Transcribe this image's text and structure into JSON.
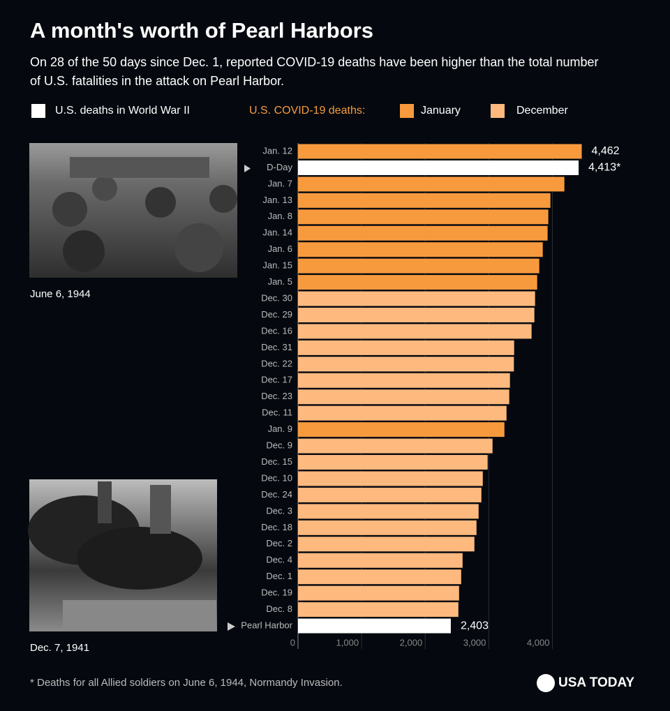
{
  "chart_data": {
    "type": "barh",
    "title": "A month's worth of Pearl Harbors",
    "subtitle": "On 28 of the 50 days since Dec. 1, reported COVID-19 deaths have been higher than the total number of U.S. fatalities in the attack on Pearl Harbor.",
    "legend_title": "U.S. COVID-19 deaths:",
    "categories": [
      "Jan. 12",
      "D-Day",
      "Jan. 7",
      "Jan. 13",
      "Jan. 8",
      "Jan. 14",
      "Jan. 6",
      "Jan. 15",
      "Jan. 5",
      "Dec. 30",
      "Dec. 29",
      "Dec. 16",
      "Dec. 31",
      "Dec. 22",
      "Dec. 17",
      "Dec. 23",
      "Dec. 11",
      "Jan. 9",
      "Dec. 9",
      "Dec. 15",
      "Dec. 10",
      "Dec. 24",
      "Dec. 3",
      "Dec. 18",
      "Dec. 2",
      "Dec. 4",
      "Dec. 1",
      "Dec. 19",
      "Dec. 8",
      "Pearl Harbor"
    ],
    "series": [
      {
        "name": "U.S. deaths in World War II",
        "color": "#ffffff",
        "values": [
          null,
          4413,
          null,
          null,
          null,
          null,
          null,
          null,
          null,
          null,
          null,
          null,
          null,
          null,
          null,
          null,
          null,
          null,
          null,
          null,
          null,
          null,
          null,
          null,
          null,
          null,
          null,
          null,
          null,
          2403
        ],
        "value_labels": [
          null,
          "4,413*",
          null,
          null,
          null,
          null,
          null,
          null,
          null,
          null,
          null,
          null,
          null,
          null,
          null,
          null,
          null,
          null,
          null,
          null,
          null,
          null,
          null,
          null,
          null,
          null,
          null,
          null,
          null,
          "2,403"
        ]
      },
      {
        "name": "January",
        "color": "#f79a3e",
        "values": [
          4462,
          null,
          4189,
          3969,
          3936,
          3925,
          3849,
          3794,
          3761,
          null,
          null,
          null,
          null,
          null,
          null,
          null,
          null,
          3246,
          null,
          null,
          null,
          null,
          null,
          null,
          null,
          null,
          null,
          null,
          null,
          null
        ],
        "value_labels": [
          "4,462",
          null,
          null,
          null,
          null,
          null,
          null,
          null,
          null,
          null,
          null,
          null,
          null,
          null,
          null,
          null,
          null,
          null,
          null,
          null,
          null,
          null,
          null,
          null,
          null,
          null,
          null,
          null,
          null,
          null
        ]
      },
      {
        "name": "December",
        "color": "#fdb97e",
        "values": [
          null,
          null,
          null,
          null,
          null,
          null,
          null,
          null,
          null,
          3728,
          3717,
          3673,
          3399,
          3395,
          3333,
          3322,
          3279,
          null,
          3059,
          2982,
          2906,
          2884,
          2840,
          2807,
          2774,
          2588,
          2566,
          2533,
          2522,
          null
        ]
      }
    ],
    "xlim": [
      0,
      4500
    ],
    "xticks": [
      0,
      {
        "value": 1000,
        "label": "1,000"
      },
      {
        "value": 2000,
        "label": "2,000"
      },
      {
        "value": 3000,
        "label": "3,000"
      },
      {
        "value": 4000,
        "label": "4,000"
      }
    ],
    "grid": true,
    "annotations": [
      "June 6, 1944",
      "Dec. 7, 1941"
    ],
    "footnote": "* Deaths for all Allied soldiers on June 6, 1944, Normandy Invasion.",
    "source": "USA TODAY"
  }
}
